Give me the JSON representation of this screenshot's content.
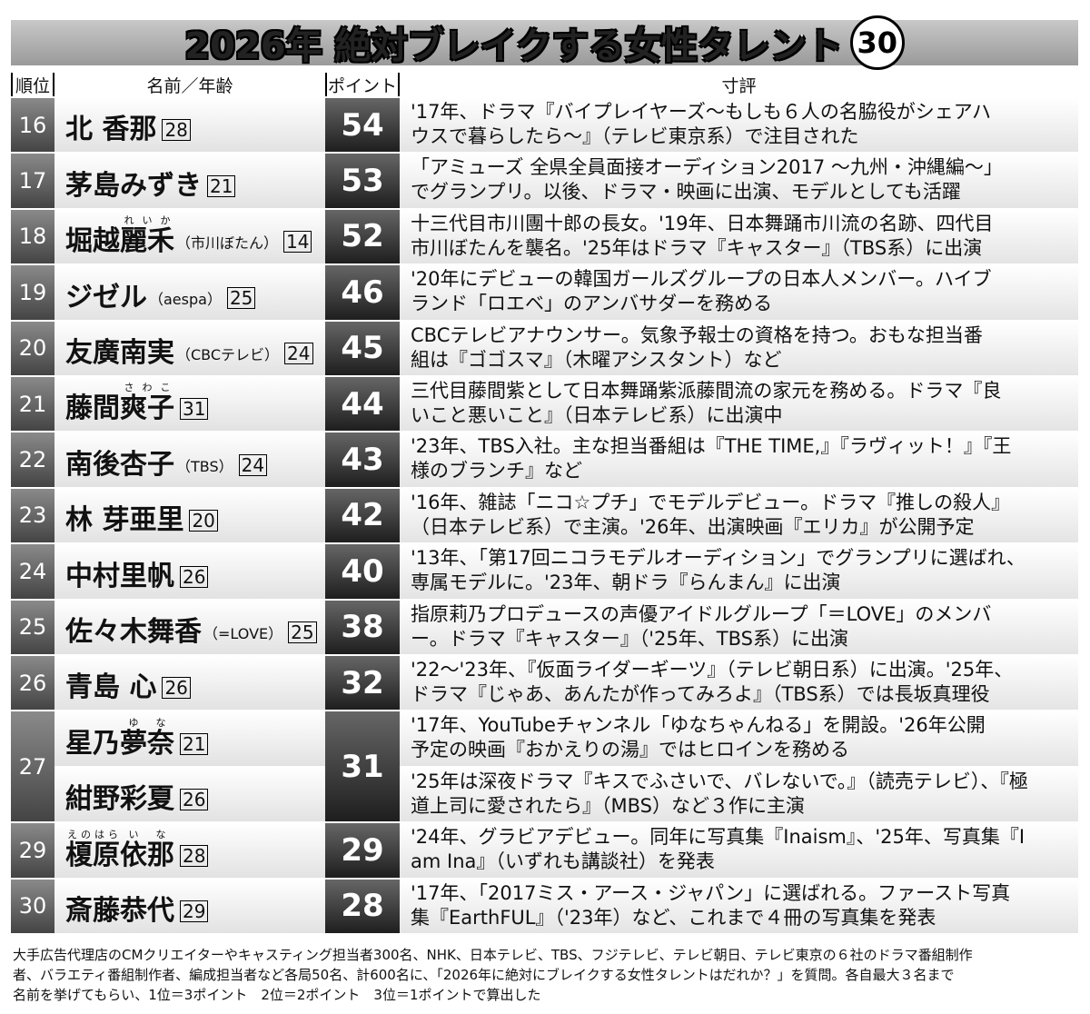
{
  "title": {
    "year": "2026年",
    "main": "絶対ブレイクする女性タレント",
    "count": "30"
  },
  "headers": {
    "rank": "順位",
    "name": "名前／年齢",
    "points": "ポイント",
    "comment": "寸評"
  },
  "rows": [
    {
      "rank": "16",
      "people": [
        {
          "name": [
            {
              "t": "北 香那"
            }
          ],
          "age": "28"
        }
      ],
      "points": "54",
      "comment": [
        "'17年、ドラマ『バイプレイヤーズ～もしも６人の名脇役がシェアハ",
        "ウスで暮らしたら～』（テレビ東京系）で注目された"
      ]
    },
    {
      "rank": "17",
      "people": [
        {
          "name": [
            {
              "t": "茅島みずき"
            }
          ],
          "age": "21"
        }
      ],
      "points": "53",
      "comment": [
        "「アミューズ 全県全員面接オーディション2017 ～九州・沖縄編～」",
        "でグランプリ。以後、ドラマ・映画に出演、モデルとしても活躍"
      ]
    },
    {
      "rank": "18",
      "people": [
        {
          "name": [
            {
              "t": "堀越"
            },
            {
              "t": "麗禾",
              "r": "れいか"
            }
          ],
          "note": "（市川ぼたん）",
          "age": "14"
        }
      ],
      "points": "52",
      "comment": [
        "十三代目市川團十郎の長女。'19年、日本舞踊市川流の名跡、四代目",
        "市川ぼたんを襲名。'25年はドラマ『キャスター』（TBS系）に出演"
      ]
    },
    {
      "rank": "19",
      "people": [
        {
          "name": [
            {
              "t": "ジゼル"
            }
          ],
          "note": "（aespa）",
          "age": "25"
        }
      ],
      "points": "46",
      "comment": [
        "'20年にデビューの韓国ガールズグループの日本人メンバー。ハイブ",
        "ランド「ロエベ」のアンバサダーを務める"
      ]
    },
    {
      "rank": "20",
      "people": [
        {
          "name": [
            {
              "t": "友廣南実"
            }
          ],
          "note": "（CBCテレビ）",
          "age": "24"
        }
      ],
      "points": "45",
      "comment": [
        "CBCテレビアナウンサー。気象予報士の資格を持つ。おもな担当番",
        "組は『ゴゴスマ』（木曜アシスタント）など"
      ]
    },
    {
      "rank": "21",
      "people": [
        {
          "name": [
            {
              "t": "藤間"
            },
            {
              "t": "爽子",
              "r": "さわこ"
            }
          ],
          "age": "31"
        }
      ],
      "points": "44",
      "comment": [
        "三代目藤間紫として日本舞踊紫派藤間流の家元を務める。ドラマ『良",
        "いこと悪いこと』（日本テレビ系）に出演中"
      ]
    },
    {
      "rank": "22",
      "people": [
        {
          "name": [
            {
              "t": "南後杏子"
            }
          ],
          "note": "（TBS）",
          "age": "24"
        }
      ],
      "points": "43",
      "comment": [
        "'23年、TBS入社。主な担当番組は『THE TIME,』『ラヴィット！』『王",
        "様のブランチ』など"
      ]
    },
    {
      "rank": "23",
      "people": [
        {
          "name": [
            {
              "t": "林 芽亜里"
            }
          ],
          "age": "20"
        }
      ],
      "points": "42",
      "comment": [
        "'16年、雑誌「ニコ☆プチ」でモデルデビュー。ドラマ『推しの殺人』",
        "（日本テレビ系）で主演。'26年、出演映画『エリカ』が公開予定"
      ]
    },
    {
      "rank": "24",
      "people": [
        {
          "name": [
            {
              "t": "中村里帆"
            }
          ],
          "age": "26"
        }
      ],
      "points": "40",
      "comment": [
        "'13年、「第17回ニコラモデルオーディション」でグランプリに選ばれ、",
        "専属モデルに。'23年、朝ドラ『らんまん』に出演"
      ]
    },
    {
      "rank": "25",
      "people": [
        {
          "name": [
            {
              "t": "佐々木舞香"
            }
          ],
          "note": "（=LOVE）",
          "age": "25"
        }
      ],
      "points": "38",
      "comment": [
        "指原莉乃プロデュースの声優アイドルグループ「＝LOVE」のメンバ",
        "ー。ドラマ『キャスター』（'25年、TBS系）に出演"
      ]
    },
    {
      "rank": "26",
      "people": [
        {
          "name": [
            {
              "t": "青島 心"
            }
          ],
          "age": "26"
        }
      ],
      "points": "32",
      "comment": [
        "'22～'23年、『仮面ライダーギーツ』（テレビ朝日系）に出演。'25年、",
        "ドラマ『じゃあ、あんたが作ってみろよ』（TBS系）では長坂真理役"
      ]
    },
    {
      "rank": "27",
      "people": [
        {
          "name": [
            {
              "t": "星乃"
            },
            {
              "t": "夢奈",
              "r": "ゆな"
            }
          ],
          "age": "21",
          "comment": [
            "'17年、YouTubeチャンネル「ゆなちゃんねる」を開設。'26年公開",
            "予定の映画『おかえりの湯』ではヒロインを務める"
          ]
        },
        {
          "name": [
            {
              "t": "紺野彩夏"
            }
          ],
          "age": "26",
          "comment": [
            "'25年は深夜ドラマ『キスでふさいで、バレないで。』（読売テレビ）、『極",
            "道上司に愛されたら』（MBS）など３作に主演"
          ]
        }
      ],
      "points": "31"
    },
    {
      "rank": "29",
      "people": [
        {
          "name": [
            {
              "t": "榎原",
              "r": "えのはら"
            },
            {
              "t": "依",
              "r": "い"
            },
            {
              "t": "那",
              "r": "な"
            }
          ],
          "age": "28"
        }
      ],
      "points": "29",
      "comment": [
        "'24年、グラビアデビュー。同年に写真集『Inaism』、'25年、写真集『I",
        "am Ina』（いずれも講談社）を発表"
      ]
    },
    {
      "rank": "30",
      "people": [
        {
          "name": [
            {
              "t": "斎藤恭代"
            }
          ],
          "age": "29"
        }
      ],
      "points": "28",
      "comment": [
        "'17年、「2017ミス・アース・ジャパン」に選ばれる。ファースト写真",
        "集『EarthFUL』（'23年）など、これまで４冊の写真集を発表"
      ]
    }
  ],
  "footnote": [
    "大手広告代理店のCMクリエイターやキャスティング担当者300名、NHK、日本テレビ、TBS、フジテレビ、テレビ朝日、テレビ東京の６社のドラマ番組制作",
    "者、バラエティ番組制作者、編成担当者など各局50名、計600名に、「2026年に絶対にブレイクする女性タレントはだれか？」を質問。各自最大３名まで",
    "名前を挙げてもらい、1位＝3ポイント　2位＝2ポイント　3位＝1ポイントで算出した"
  ]
}
